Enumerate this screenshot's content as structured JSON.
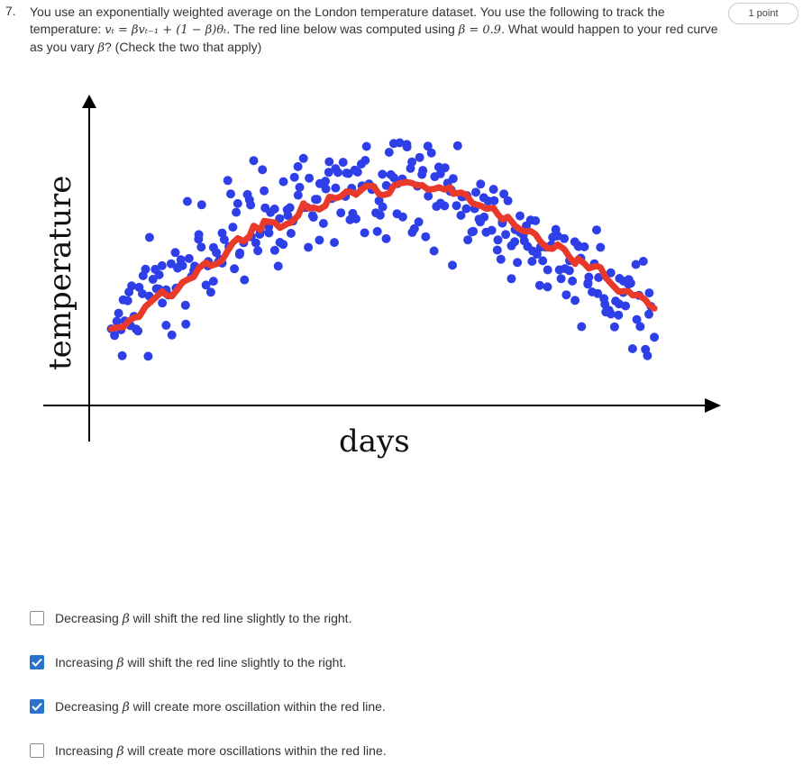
{
  "question": {
    "number": "7.",
    "text_part1": "You use an exponentially weighted average on the London temperature dataset. You use the following to track the temperature: ",
    "equation": "vₜ = βvₜ₋₁ + (1 − β)θₜ",
    "text_part2": ". The red line below was computed using ",
    "beta_value": "β = 0.9",
    "text_part3": ". What would happen to your red curve as you vary ",
    "beta_symbol": "β",
    "text_part4": "? (Check the two that apply)",
    "points": "1 point"
  },
  "figure": {
    "ylabel": "temperature",
    "xlabel": "days",
    "colors": {
      "points": "#2f3fe8",
      "ewma_line": "#e8392b",
      "axes": "#000000"
    }
  },
  "options": [
    {
      "pre": "Decreasing ",
      "symbol": "β",
      "post": " will shift the red line slightly to the right.",
      "checked": false
    },
    {
      "pre": "Increasing ",
      "symbol": "β",
      "post": " will shift the red line slightly to the right.",
      "checked": true
    },
    {
      "pre": "Decreasing ",
      "symbol": "β",
      "post": " will create more oscillation within the red line.",
      "checked": true
    },
    {
      "pre": "Increasing ",
      "symbol": "β",
      "post": " will create more oscillations within the red line.",
      "checked": false
    }
  ]
}
